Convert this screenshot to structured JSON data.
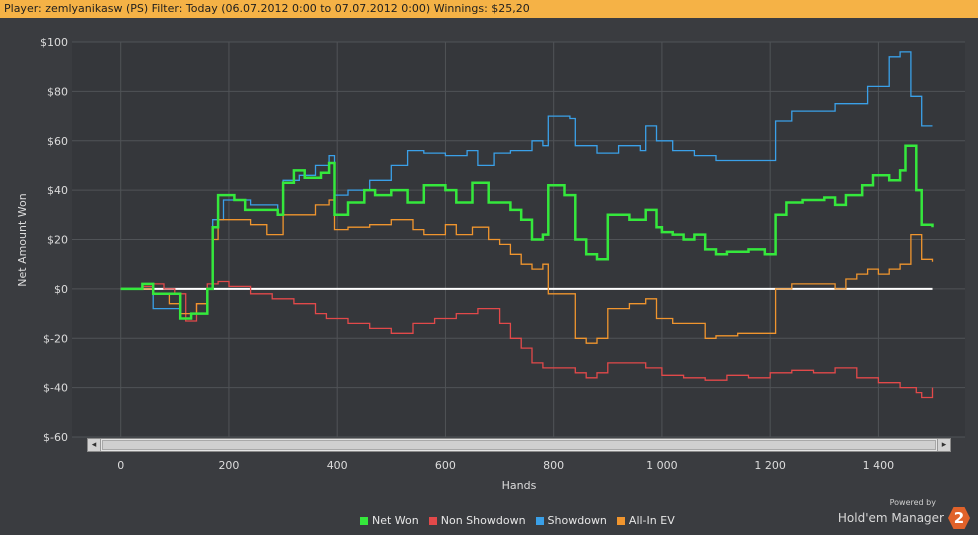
{
  "header": {
    "text": "Player: zemlyanikasw (PS) Filter: Today (06.07.2012 0:00 to 07.07.2012 0:00) Winnings: $25,20"
  },
  "branding": {
    "powered_by": "Powered by",
    "product": "Hold'em Manager",
    "badge": "2"
  },
  "scrollbar": {
    "left_arrow": "◂",
    "right_arrow": "▸"
  },
  "colors": {
    "net_won": "#35e83c",
    "non_showdown": "#e2494a",
    "showdown": "#3aa0e8",
    "all_in_ev": "#f0952e",
    "zero_line": "#ffffff",
    "plot_bg": "#35373b",
    "grid": "#505357",
    "text": "#dcdcdc"
  },
  "chart_data": {
    "type": "line",
    "xlabel": "Hands",
    "ylabel": "Net Amount Won",
    "xlim": [
      -90,
      1560
    ],
    "ylim": [
      -60,
      100
    ],
    "x_ticks": [
      0,
      200,
      400,
      600,
      800,
      1000,
      1200,
      1400
    ],
    "x_tick_labels": [
      "0",
      "200",
      "400",
      "600",
      "800",
      "1 000",
      "1 200",
      "1 400"
    ],
    "y_ticks": [
      -60,
      -40,
      -20,
      0,
      20,
      40,
      60,
      80,
      100
    ],
    "y_tick_labels": [
      "$-60",
      "$-40",
      "$-20",
      "$0",
      "$20",
      "$40",
      "$60",
      "$80",
      "$100"
    ],
    "grid": true,
    "legend_position": "bottom-center",
    "series": [
      {
        "name": "Net Won",
        "points": [
          [
            0,
            0
          ],
          [
            30,
            0
          ],
          [
            40,
            2
          ],
          [
            60,
            -2
          ],
          [
            80,
            -2
          ],
          [
            110,
            -12
          ],
          [
            130,
            -10
          ],
          [
            160,
            0
          ],
          [
            170,
            25
          ],
          [
            180,
            38
          ],
          [
            210,
            36
          ],
          [
            230,
            32
          ],
          [
            270,
            32
          ],
          [
            290,
            30
          ],
          [
            300,
            43
          ],
          [
            320,
            48
          ],
          [
            340,
            45
          ],
          [
            370,
            47
          ],
          [
            385,
            51
          ],
          [
            395,
            30
          ],
          [
            420,
            35
          ],
          [
            450,
            40
          ],
          [
            470,
            38
          ],
          [
            500,
            40
          ],
          [
            530,
            35
          ],
          [
            560,
            42
          ],
          [
            600,
            40
          ],
          [
            620,
            35
          ],
          [
            650,
            43
          ],
          [
            680,
            35
          ],
          [
            720,
            32
          ],
          [
            740,
            28
          ],
          [
            760,
            20
          ],
          [
            780,
            22
          ],
          [
            790,
            42
          ],
          [
            820,
            38
          ],
          [
            840,
            20
          ],
          [
            860,
            14
          ],
          [
            880,
            12
          ],
          [
            900,
            30
          ],
          [
            940,
            28
          ],
          [
            970,
            32
          ],
          [
            990,
            25
          ],
          [
            1000,
            23
          ],
          [
            1020,
            22
          ],
          [
            1040,
            20
          ],
          [
            1060,
            22
          ],
          [
            1080,
            16
          ],
          [
            1100,
            14
          ],
          [
            1120,
            15
          ],
          [
            1160,
            16
          ],
          [
            1190,
            14
          ],
          [
            1210,
            30
          ],
          [
            1230,
            35
          ],
          [
            1260,
            36
          ],
          [
            1300,
            37
          ],
          [
            1320,
            34
          ],
          [
            1340,
            38
          ],
          [
            1370,
            42
          ],
          [
            1390,
            46
          ],
          [
            1420,
            44
          ],
          [
            1440,
            48
          ],
          [
            1450,
            58
          ],
          [
            1470,
            40
          ],
          [
            1480,
            26
          ],
          [
            1500,
            25
          ]
        ]
      },
      {
        "name": "Non Showdown",
        "points": [
          [
            0,
            0
          ],
          [
            40,
            1
          ],
          [
            60,
            2
          ],
          [
            80,
            0
          ],
          [
            100,
            -2
          ],
          [
            120,
            -13
          ],
          [
            140,
            -6
          ],
          [
            160,
            2
          ],
          [
            180,
            3
          ],
          [
            200,
            1
          ],
          [
            240,
            -2
          ],
          [
            280,
            -4
          ],
          [
            320,
            -6
          ],
          [
            360,
            -10
          ],
          [
            380,
            -12
          ],
          [
            420,
            -14
          ],
          [
            460,
            -16
          ],
          [
            500,
            -18
          ],
          [
            540,
            -14
          ],
          [
            580,
            -12
          ],
          [
            620,
            -10
          ],
          [
            660,
            -8
          ],
          [
            700,
            -14
          ],
          [
            720,
            -20
          ],
          [
            740,
            -24
          ],
          [
            760,
            -30
          ],
          [
            780,
            -32
          ],
          [
            800,
            -32
          ],
          [
            840,
            -34
          ],
          [
            860,
            -36
          ],
          [
            880,
            -34
          ],
          [
            900,
            -30
          ],
          [
            940,
            -30
          ],
          [
            970,
            -32
          ],
          [
            1000,
            -35
          ],
          [
            1040,
            -36
          ],
          [
            1080,
            -37
          ],
          [
            1120,
            -35
          ],
          [
            1160,
            -36
          ],
          [
            1200,
            -34
          ],
          [
            1240,
            -33
          ],
          [
            1280,
            -34
          ],
          [
            1320,
            -32
          ],
          [
            1360,
            -36
          ],
          [
            1400,
            -38
          ],
          [
            1440,
            -40
          ],
          [
            1470,
            -42
          ],
          [
            1480,
            -44
          ],
          [
            1500,
            -40
          ]
        ]
      },
      {
        "name": "Showdown",
        "points": [
          [
            0,
            0
          ],
          [
            40,
            0
          ],
          [
            60,
            -8
          ],
          [
            90,
            -8
          ],
          [
            110,
            -12
          ],
          [
            130,
            -10
          ],
          [
            160,
            0
          ],
          [
            170,
            28
          ],
          [
            190,
            36
          ],
          [
            240,
            34
          ],
          [
            270,
            34
          ],
          [
            290,
            30
          ],
          [
            300,
            44
          ],
          [
            330,
            46
          ],
          [
            360,
            50
          ],
          [
            385,
            54
          ],
          [
            395,
            38
          ],
          [
            420,
            40
          ],
          [
            460,
            44
          ],
          [
            500,
            50
          ],
          [
            530,
            56
          ],
          [
            560,
            55
          ],
          [
            600,
            54
          ],
          [
            640,
            56
          ],
          [
            660,
            50
          ],
          [
            690,
            55
          ],
          [
            720,
            56
          ],
          [
            760,
            60
          ],
          [
            780,
            58
          ],
          [
            790,
            70
          ],
          [
            830,
            69
          ],
          [
            840,
            58
          ],
          [
            880,
            55
          ],
          [
            920,
            58
          ],
          [
            960,
            56
          ],
          [
            970,
            66
          ],
          [
            990,
            60
          ],
          [
            1020,
            56
          ],
          [
            1060,
            54
          ],
          [
            1100,
            52
          ],
          [
            1160,
            52
          ],
          [
            1190,
            52
          ],
          [
            1210,
            68
          ],
          [
            1240,
            72
          ],
          [
            1280,
            72
          ],
          [
            1320,
            75
          ],
          [
            1350,
            75
          ],
          [
            1380,
            82
          ],
          [
            1410,
            82
          ],
          [
            1420,
            94
          ],
          [
            1440,
            96
          ],
          [
            1460,
            78
          ],
          [
            1480,
            66
          ],
          [
            1500,
            66
          ]
        ]
      },
      {
        "name": "All-In EV",
        "points": [
          [
            0,
            0
          ],
          [
            40,
            0
          ],
          [
            60,
            -2
          ],
          [
            90,
            -6
          ],
          [
            110,
            -10
          ],
          [
            140,
            -6
          ],
          [
            160,
            0
          ],
          [
            170,
            20
          ],
          [
            180,
            28
          ],
          [
            210,
            28
          ],
          [
            240,
            26
          ],
          [
            270,
            22
          ],
          [
            290,
            22
          ],
          [
            300,
            30
          ],
          [
            330,
            30
          ],
          [
            360,
            34
          ],
          [
            385,
            36
          ],
          [
            395,
            24
          ],
          [
            420,
            25
          ],
          [
            460,
            26
          ],
          [
            500,
            28
          ],
          [
            540,
            24
          ],
          [
            560,
            22
          ],
          [
            600,
            26
          ],
          [
            620,
            22
          ],
          [
            650,
            25
          ],
          [
            680,
            20
          ],
          [
            700,
            18
          ],
          [
            720,
            14
          ],
          [
            740,
            10
          ],
          [
            760,
            8
          ],
          [
            780,
            10
          ],
          [
            790,
            -2
          ],
          [
            820,
            -2
          ],
          [
            840,
            -20
          ],
          [
            860,
            -22
          ],
          [
            880,
            -20
          ],
          [
            900,
            -8
          ],
          [
            940,
            -6
          ],
          [
            970,
            -4
          ],
          [
            990,
            -12
          ],
          [
            1020,
            -14
          ],
          [
            1060,
            -14
          ],
          [
            1080,
            -20
          ],
          [
            1100,
            -19
          ],
          [
            1140,
            -18
          ],
          [
            1190,
            -18
          ],
          [
            1210,
            0
          ],
          [
            1240,
            2
          ],
          [
            1280,
            2
          ],
          [
            1320,
            0
          ],
          [
            1340,
            4
          ],
          [
            1360,
            6
          ],
          [
            1380,
            8
          ],
          [
            1400,
            6
          ],
          [
            1420,
            8
          ],
          [
            1440,
            10
          ],
          [
            1460,
            22
          ],
          [
            1480,
            12
          ],
          [
            1500,
            11
          ]
        ]
      }
    ]
  }
}
